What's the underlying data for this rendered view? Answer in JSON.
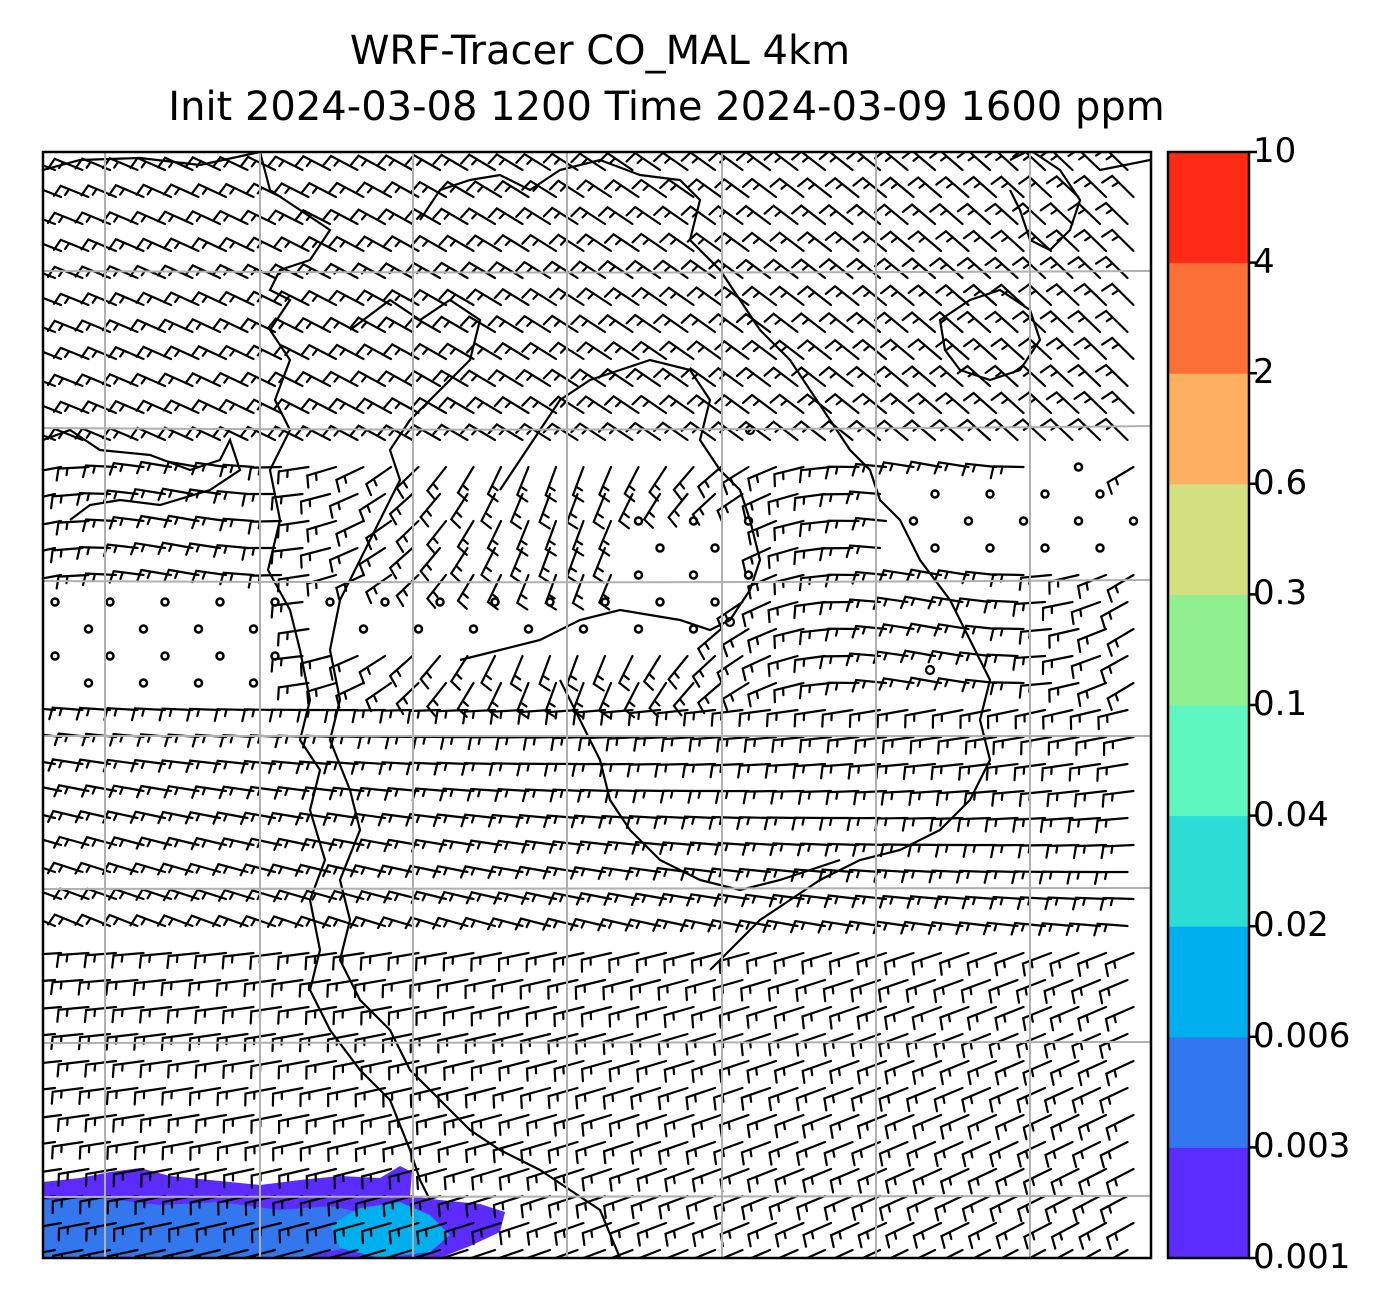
{
  "title": {
    "line1": "WRF-Tracer CO_MAL 4km",
    "line2": "Init 2024-03-08 1200 Time 2024-03-09 1600 ppm"
  },
  "colorbar": {
    "levels": [
      "0.001",
      "0.003",
      "0.006",
      "0.02",
      "0.04",
      "0.1",
      "0.3",
      "0.6",
      "2",
      "4",
      "10"
    ],
    "colors": [
      "#5b2bff",
      "#3377ee",
      "#00b0ee",
      "#2ddcd4",
      "#5ff5bf",
      "#90f090",
      "#d2e080",
      "#fcb060",
      "#fc7038",
      "#ff2a15"
    ]
  },
  "map": {
    "layers": [
      "tracer-concentration-fill",
      "wind-barbs",
      "coastlines",
      "gridlines"
    ],
    "line_color": "#000000",
    "grid_color": "#b0b0b0"
  }
}
